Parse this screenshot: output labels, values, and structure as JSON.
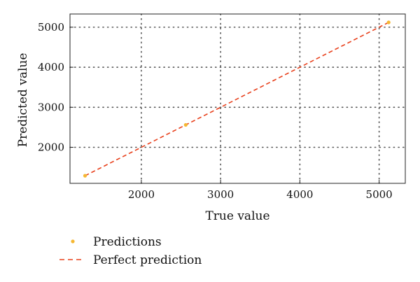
{
  "chart_data": {
    "type": "scatter",
    "title": "",
    "xlabel": "True value",
    "ylabel": "Predicted value",
    "xlim": [
      1100,
      5330
    ],
    "ylim": [
      1100,
      5330
    ],
    "xticks": [
      2000,
      3000,
      4000,
      5000
    ],
    "yticks": [
      2000,
      3000,
      4000,
      5000
    ],
    "grid": true,
    "legend_position": "below",
    "series": [
      {
        "name": "Predictions",
        "kind": "scatter",
        "color": "#f5b731",
        "x": [
          1290,
          2560,
          5120
        ],
        "y": [
          1290,
          2560,
          5120
        ]
      },
      {
        "name": "Perfect prediction",
        "kind": "line",
        "style": "dashed",
        "color": "#e8401c",
        "x": [
          1290,
          5120
        ],
        "y": [
          1290,
          5120
        ]
      }
    ]
  }
}
